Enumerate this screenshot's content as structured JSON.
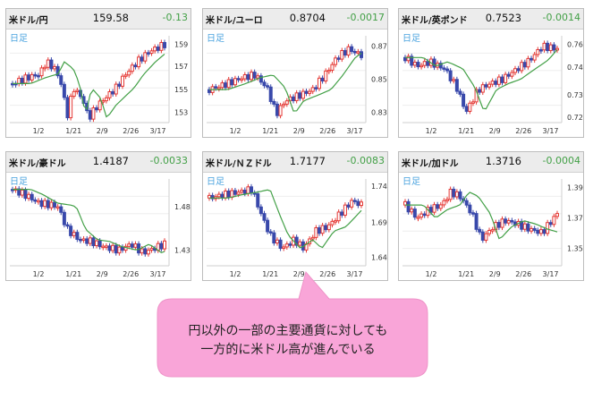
{
  "timeframe_label": "日足",
  "panels": [
    {
      "name": "米ドル/円",
      "price": "159.58",
      "change": "-0.13",
      "yticks": [
        "159",
        "157",
        "155",
        "153"
      ],
      "xticks": [
        "1/2",
        "1/21",
        "2/9",
        "2/26",
        "3/17"
      ]
    },
    {
      "name": "米ドル/ユーロ",
      "price": "0.8704",
      "change": "-0.0017",
      "yticks": [
        "0.87",
        "0.85",
        "0.83"
      ],
      "xticks": [
        "1/2",
        "1/21",
        "2/9",
        "2/26",
        "3/17"
      ]
    },
    {
      "name": "米ドル/英ポンド",
      "price": "0.7523",
      "change": "-0.0014",
      "yticks": [
        "0.76",
        "0.74",
        "0.73",
        "0.72"
      ],
      "xticks": [
        "1/2",
        "1/21",
        "2/9",
        "2/26",
        "3/17"
      ]
    },
    {
      "name": "米ドル/豪ドル",
      "price": "1.4187",
      "change": "-0.0033",
      "yticks": [
        "1.48",
        "1.43"
      ],
      "xticks": [
        "1/2",
        "1/21",
        "2/9",
        "2/26",
        "3/17"
      ]
    },
    {
      "name": "米ドル/ＮＺドル",
      "price": "1.7177",
      "change": "-0.0083",
      "yticks": [
        "1.74",
        "1.69",
        "1.64"
      ],
      "xticks": [
        "1/2",
        "1/21",
        "2/9",
        "2/26",
        "3/17"
      ]
    },
    {
      "name": "米ドル/加ドル",
      "price": "1.3716",
      "change": "-0.0004",
      "yticks": [
        "1.39",
        "1.37",
        "1.35"
      ],
      "xticks": [
        "1/2",
        "1/21",
        "2/9",
        "2/26",
        "3/17"
      ]
    }
  ],
  "callout": {
    "line1": "円以外の一部の主要通貨に対しても",
    "line2": "一方的に米ドル高が進んでいる"
  },
  "colors": {
    "up": "#e53935",
    "down": "#3949ab",
    "ma": "#43a047",
    "callout": "#f9a5d8"
  }
}
